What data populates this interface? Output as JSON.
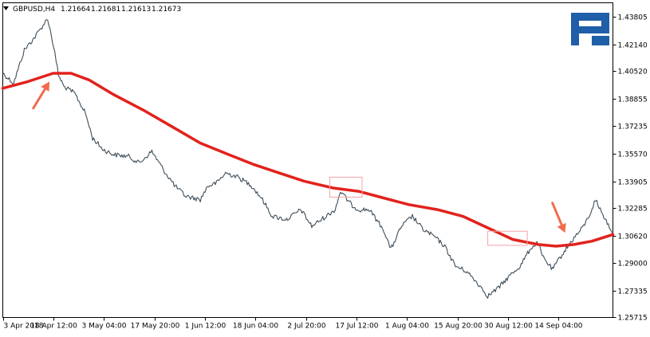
{
  "header": {
    "menu_icon": "triangle-down-icon",
    "symbol": "GBPUSD,H4",
    "open": "1.21664",
    "high": "1.21681",
    "low": "1.21613",
    "close": "1.21673"
  },
  "logo": {
    "name": "roboforex-logo-icon",
    "color": "#1f5ea8"
  },
  "colors": {
    "price": "#3e4e5a",
    "moving_average": "#e2221c",
    "highlight_box": "#f3a3a6",
    "arrow": "#f26b4f"
  },
  "chart_data": {
    "type": "line",
    "ylim": [
      1.2571,
      1.4464
    ],
    "y_ticks": [
      "1.43805",
      "1.42140",
      "1.40520",
      "1.38855",
      "1.37235",
      "1.35570",
      "1.33905",
      "1.32285",
      "1.30620",
      "1.29000",
      "1.27335",
      "1.25715"
    ],
    "x_ticks": [
      "3 Apr 2018",
      "18 Apr 12:00",
      "3 May 04:00",
      "17 May 20:00",
      "1 Jun 12:00",
      "18 Jun 04:00",
      "2 Jul 20:00",
      "17 Jul 12:00",
      "1 Aug 04:00",
      "15 Aug 20:00",
      "30 Aug 12:00",
      "14 Sep 04:00"
    ],
    "x_range": [
      "2018-04-03 00:00",
      "2018-09-19 20:00"
    ],
    "grid": false,
    "series": [
      {
        "role": "price",
        "x": [
          "2018-04-03 00:00",
          "2018-04-06 00:00",
          "2018-04-09 00:00",
          "2018-04-12 00:00",
          "2018-04-15 12:00",
          "2018-04-17 04:00",
          "2018-04-18 12:00",
          "2018-04-20 00:00",
          "2018-04-23 00:00",
          "2018-04-26 00:00",
          "2018-04-28 00:00",
          "2018-05-01 00:00",
          "2018-05-04 00:00",
          "2018-05-08 00:00",
          "2018-05-11 00:00",
          "2018-05-14 12:00",
          "2018-05-18 00:00",
          "2018-05-21 00:00",
          "2018-05-24 00:00",
          "2018-05-28 00:00",
          "2018-05-30 00:00",
          "2018-06-01 12:00",
          "2018-06-04 00:00",
          "2018-06-07 00:00",
          "2018-06-11 00:00",
          "2018-06-14 00:00",
          "2018-06-17 00:00",
          "2018-06-21 00:00",
          "2018-06-25 00:00",
          "2018-06-28 00:00",
          "2018-07-02 00:00",
          "2018-07-04 12:00",
          "2018-07-06 00:00",
          "2018-07-09 00:00",
          "2018-07-11 00:00",
          "2018-07-14 00:00",
          "2018-07-18 00:00",
          "2018-07-20 00:00",
          "2018-07-23 00:00",
          "2018-07-26 00:00",
          "2018-07-29 00:00",
          "2018-08-01 00:00",
          "2018-08-04 00:00",
          "2018-08-07 00:00",
          "2018-08-10 00:00",
          "2018-08-13 12:00",
          "2018-08-16 00:00",
          "2018-08-19 00:00",
          "2018-08-22 00:00",
          "2018-08-25 00:00",
          "2018-08-28 00:00",
          "2018-08-30 00:00",
          "2018-08-31 04:00",
          "2018-09-03 00:00",
          "2018-09-06 00:00",
          "2018-09-09 00:00",
          "2018-09-11 00:00",
          "2018-09-13 00:00",
          "2018-09-15 00:00",
          "2018-09-17 00:00",
          "2018-09-19 20:00"
        ],
        "values": [
          1.404,
          1.398,
          1.418,
          1.426,
          1.437,
          1.42,
          1.403,
          1.396,
          1.392,
          1.38,
          1.365,
          1.358,
          1.355,
          1.354,
          1.35,
          1.357,
          1.345,
          1.336,
          1.33,
          1.328,
          1.336,
          1.338,
          1.344,
          1.342,
          1.337,
          1.329,
          1.318,
          1.316,
          1.322,
          1.312,
          1.318,
          1.322,
          1.333,
          1.325,
          1.322,
          1.322,
          1.31,
          1.298,
          1.312,
          1.318,
          1.31,
          1.306,
          1.3,
          1.288,
          1.285,
          1.277,
          1.27,
          1.275,
          1.282,
          1.288,
          1.299,
          1.302,
          1.294,
          1.286,
          1.296,
          1.305,
          1.31,
          1.317,
          1.328,
          1.319,
          1.308
        ]
      },
      {
        "role": "moving_average",
        "x": [
          "2018-04-03 00:00",
          "2018-04-10 00:00",
          "2018-04-17 00:00",
          "2018-04-22 00:00",
          "2018-04-27 00:00",
          "2018-05-04 00:00",
          "2018-05-12 00:00",
          "2018-05-20 00:00",
          "2018-05-28 00:00",
          "2018-06-05 00:00",
          "2018-06-12 00:00",
          "2018-06-19 00:00",
          "2018-06-26 00:00",
          "2018-07-04 00:00",
          "2018-07-11 00:00",
          "2018-07-18 00:00",
          "2018-07-25 00:00",
          "2018-08-02 00:00",
          "2018-08-09 00:00",
          "2018-08-16 00:00",
          "2018-08-23 00:00",
          "2018-08-30 00:00",
          "2018-09-04 00:00",
          "2018-09-09 00:00",
          "2018-09-14 00:00",
          "2018-09-19 20:00"
        ],
        "values": [
          1.395,
          1.399,
          1.404,
          1.404,
          1.4,
          1.391,
          1.382,
          1.372,
          1.362,
          1.355,
          1.349,
          1.344,
          1.339,
          1.335,
          1.333,
          1.329,
          1.325,
          1.322,
          1.318,
          1.311,
          1.304,
          1.301,
          1.3,
          1.301,
          1.303,
          1.307
        ]
      }
    ],
    "highlights": [
      {
        "x": [
          "2018-07-03 00:00",
          "2018-07-12 00:00"
        ],
        "y": [
          1.3295,
          1.3415
        ]
      },
      {
        "x": [
          "2018-08-16 00:00",
          "2018-08-27 00:00"
        ],
        "y": [
          1.3005,
          1.309
        ]
      }
    ],
    "arrows": [
      {
        "from": {
          "x": "2018-04-11 12:00",
          "y": 1.383
        },
        "to": {
          "x": "2018-04-16 00:00",
          "y": 1.399
        }
      },
      {
        "from": {
          "x": "2018-09-03 00:00",
          "y": 1.326
        },
        "to": {
          "x": "2018-09-06 12:00",
          "y": 1.308
        }
      }
    ]
  }
}
